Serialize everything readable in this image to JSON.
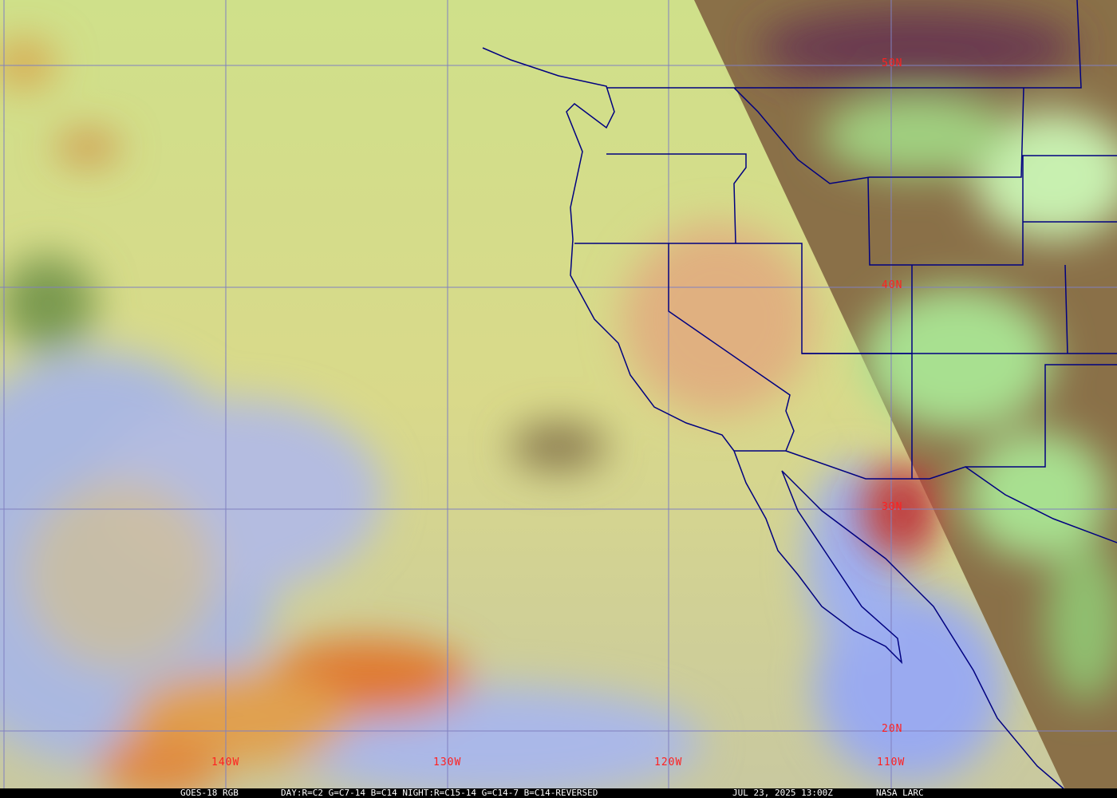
{
  "map": {
    "latitude_labels": [
      "50N",
      "40N",
      "30N",
      "20N"
    ],
    "longitude_labels": [
      "140W",
      "130W",
      "120W",
      "110W"
    ],
    "colors": {
      "grid": "#8080c0",
      "coastline": "#000080",
      "labels": "#ff2020",
      "ocean_cloud": "#d8e08a",
      "clear_ocean": "#a8b8e8",
      "high_cloud": "#e08a3a",
      "night_land": "#7a5a3a"
    }
  },
  "caption": {
    "product": "GOES-18 RGB",
    "recipe": "DAY:R=C2 G=C7-14 B=C14 NIGHT:R=C15-14 G=C14-7 B=C14-REVERSED",
    "timestamp": "JUL 23, 2025 13:00Z",
    "credit": "NASA LARC"
  }
}
